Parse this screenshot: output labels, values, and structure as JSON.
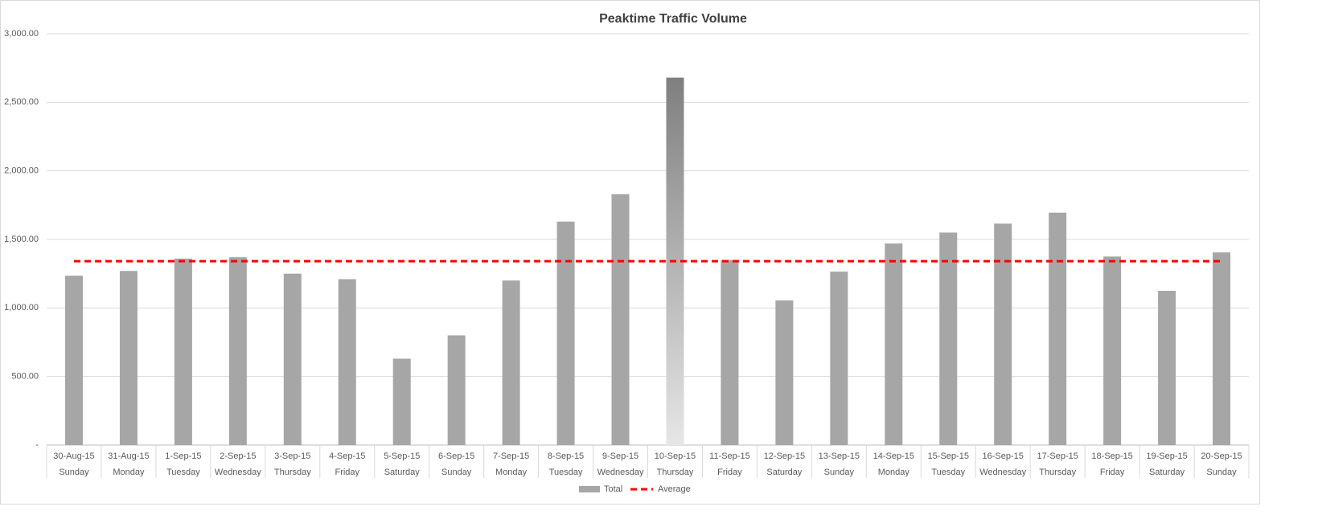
{
  "chart_data": {
    "type": "bar",
    "title": "Peaktime Traffic Volume",
    "categories": [
      "30-Aug-15",
      "31-Aug-15",
      "1-Sep-15",
      "2-Sep-15",
      "3-Sep-15",
      "4-Sep-15",
      "5-Sep-15",
      "6-Sep-15",
      "7-Sep-15",
      "8-Sep-15",
      "9-Sep-15",
      "10-Sep-15",
      "11-Sep-15",
      "12-Sep-15",
      "13-Sep-15",
      "14-Sep-15",
      "15-Sep-15",
      "16-Sep-15",
      "17-Sep-15",
      "18-Sep-15",
      "19-Sep-15",
      "20-Sep-15"
    ],
    "weekdays": [
      "Sunday",
      "Monday",
      "Tuesday",
      "Wednesday",
      "Thursday",
      "Friday",
      "Saturday",
      "Sunday",
      "Monday",
      "Tuesday",
      "Wednesday",
      "Thursday",
      "Friday",
      "Saturday",
      "Sunday",
      "Monday",
      "Tuesday",
      "Wednesday",
      "Thursday",
      "Friday",
      "Saturday",
      "Sunday"
    ],
    "series": [
      {
        "name": "Total",
        "type": "bar",
        "color": "#a6a6a6",
        "highlight": "10-Sep-15",
        "values": [
          1235,
          1270,
          1360,
          1370,
          1250,
          1210,
          630,
          800,
          1200,
          1630,
          1830,
          2680,
          1350,
          1055,
          1265,
          1470,
          1550,
          1615,
          1695,
          1375,
          1125,
          1405
        ]
      },
      {
        "name": "Average",
        "type": "line",
        "color": "#ff0000",
        "dashed": true,
        "values": [
          1341,
          1341,
          1341,
          1341,
          1341,
          1341,
          1341,
          1341,
          1341,
          1341,
          1341,
          1341,
          1341,
          1341,
          1341,
          1341,
          1341,
          1341,
          1341,
          1341,
          1341,
          1341
        ]
      }
    ],
    "ylim": [
      0,
      3000
    ],
    "yticks": [
      {
        "value": 0,
        "label": "-"
      },
      {
        "value": 500,
        "label": "500.00"
      },
      {
        "value": 1000,
        "label": "1,000.00"
      },
      {
        "value": 1500,
        "label": "1,500.00"
      },
      {
        "value": 2000,
        "label": "2,000.00"
      },
      {
        "value": 2500,
        "label": "2,500.00"
      },
      {
        "value": 3000,
        "label": "3,000.00"
      }
    ],
    "grid": true,
    "legend": "bottom"
  }
}
